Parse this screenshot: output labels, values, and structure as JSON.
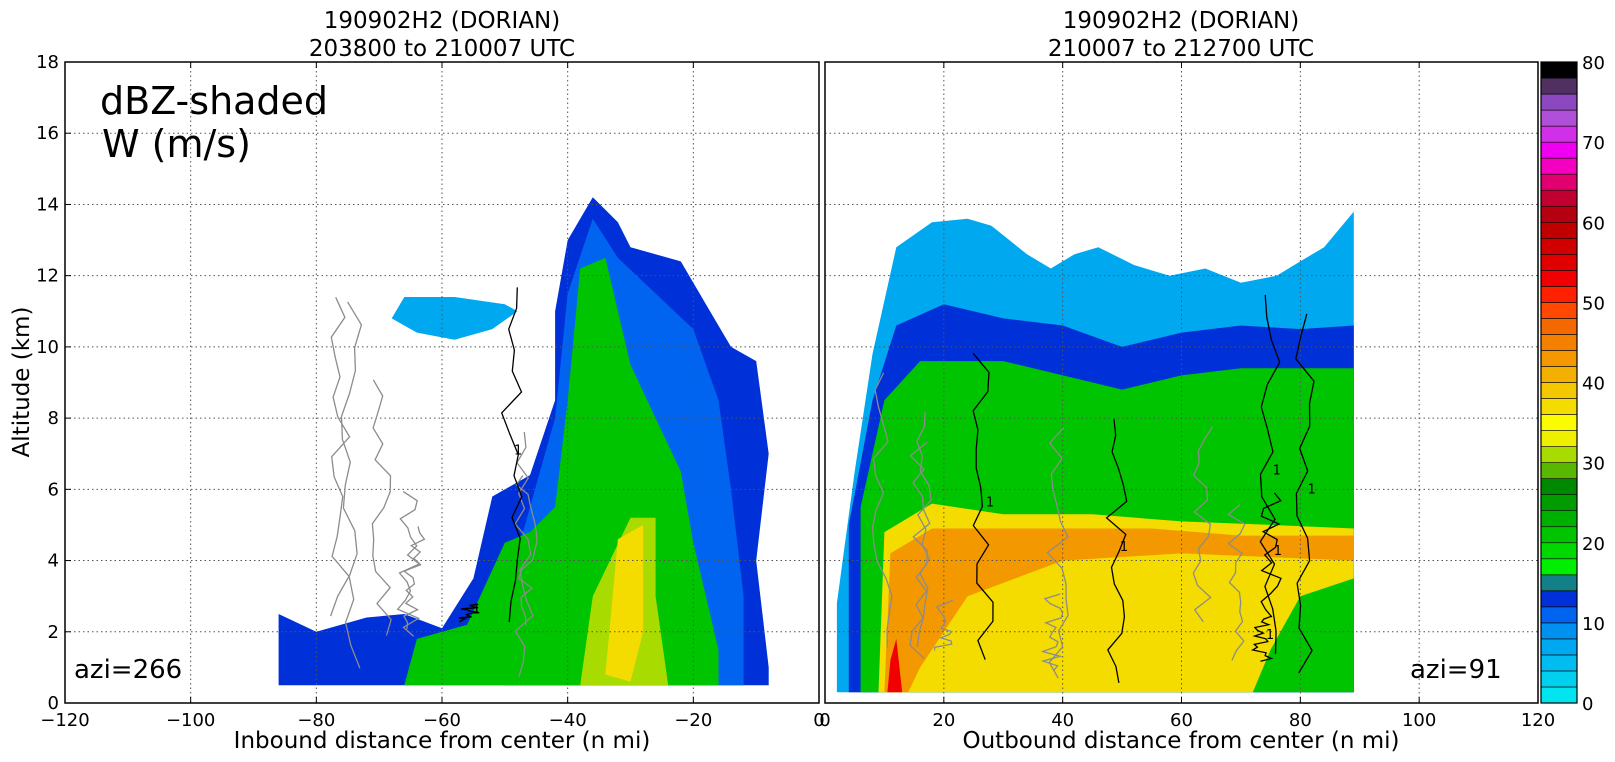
{
  "chart_data": [
    {
      "type": "heatmap",
      "title": [
        "190902H2 (DORIAN)",
        "203800 to 210007 UTC"
      ],
      "xlabel": "Inbound distance from center (n mi)",
      "ylabel": "Altitude (km)",
      "xlim": [
        -120,
        0
      ],
      "ylim": [
        0,
        18
      ],
      "xticks": [
        -120,
        -100,
        -80,
        -60,
        -40,
        -20,
        0
      ],
      "yticks": [
        0,
        2,
        4,
        6,
        8,
        10,
        12,
        14,
        16,
        18
      ],
      "grid": true,
      "annotations": [
        "dBZ-shaded",
        "W (m/s)",
        "azi=266"
      ],
      "contour_label": "1",
      "echo_regions": [
        {
          "dbz": 12,
          "points": [
            [
              -86,
              0.5
            ],
            [
              -86,
              2.5
            ],
            [
              -80,
              2.0
            ],
            [
              -72,
              2.4
            ],
            [
              -66,
              2.5
            ],
            [
              -60,
              2.1
            ],
            [
              -55,
              3.5
            ],
            [
              -52,
              5.8
            ],
            [
              -46,
              6.4
            ],
            [
              -42,
              8.5
            ],
            [
              -42,
              11.0
            ],
            [
              -40,
              13.0
            ],
            [
              -36,
              14.2
            ],
            [
              -32,
              13.5
            ],
            [
              -30,
              12.8
            ],
            [
              -22,
              12.4
            ],
            [
              -18,
              11.2
            ],
            [
              -14,
              10.0
            ],
            [
              -10,
              9.6
            ],
            [
              -8,
              7.0
            ],
            [
              -10,
              4.0
            ],
            [
              -8,
              1.0
            ],
            [
              -8,
              0.5
            ]
          ]
        },
        {
          "dbz": 6,
          "points": [
            [
              -68,
              10.8
            ],
            [
              -64,
              10.4
            ],
            [
              -58,
              10.2
            ],
            [
              -52,
              10.5
            ],
            [
              -48,
              11.0
            ],
            [
              -50,
              11.2
            ],
            [
              -58,
              11.4
            ],
            [
              -66,
              11.4
            ]
          ]
        },
        {
          "dbz": 10,
          "points": [
            [
              -50,
              0.5
            ],
            [
              -50,
              3.0
            ],
            [
              -46,
              5.5
            ],
            [
              -42,
              8.0
            ],
            [
              -40,
              11.5
            ],
            [
              -36,
              13.6
            ],
            [
              -32,
              12.5
            ],
            [
              -26,
              11.5
            ],
            [
              -20,
              10.5
            ],
            [
              -16,
              8.5
            ],
            [
              -14,
              6.0
            ],
            [
              -12,
              3.0
            ],
            [
              -12,
              0.5
            ]
          ]
        },
        {
          "dbz": 20,
          "points": [
            [
              -66,
              0.5
            ],
            [
              -64,
              1.8
            ],
            [
              -56,
              2.2
            ],
            [
              -50,
              4.5
            ],
            [
              -46,
              4.8
            ],
            [
              -42,
              5.5
            ],
            [
              -40,
              8.5
            ],
            [
              -38,
              12.2
            ],
            [
              -34,
              12.5
            ],
            [
              -30,
              9.5
            ],
            [
              -26,
              8.0
            ],
            [
              -22,
              6.5
            ],
            [
              -20,
              4.5
            ],
            [
              -16,
              1.5
            ],
            [
              -16,
              0.5
            ]
          ]
        },
        {
          "dbz": 30,
          "points": [
            [
              -38,
              0.5
            ],
            [
              -36,
              3.0
            ],
            [
              -30,
              5.2
            ],
            [
              -26,
              5.2
            ],
            [
              -26,
              3.0
            ],
            [
              -24,
              0.5
            ]
          ]
        },
        {
          "dbz": 36,
          "points": [
            [
              -34,
              0.8
            ],
            [
              -32,
              4.6
            ],
            [
              -28,
              5.0
            ],
            [
              -28,
              2.0
            ],
            [
              -30,
              0.6
            ]
          ]
        }
      ]
    },
    {
      "type": "heatmap",
      "title": [
        "190902H2 (DORIAN)",
        "210007 to 212700 UTC"
      ],
      "xlabel": "Outbound distance from center (n mi)",
      "ylabel": "",
      "xlim": [
        0,
        120
      ],
      "ylim": [
        0,
        18
      ],
      "xticks": [
        0,
        20,
        40,
        60,
        80,
        100,
        120
      ],
      "grid": true,
      "annotations": [
        "azi=91"
      ],
      "contour_label": "1",
      "echo_regions": [
        {
          "dbz": 6,
          "points": [
            [
              2,
              0.3
            ],
            [
              2,
              2.8
            ],
            [
              5,
              6.5
            ],
            [
              8,
              9.8
            ],
            [
              12,
              12.8
            ],
            [
              18,
              13.5
            ],
            [
              24,
              13.6
            ],
            [
              28,
              13.4
            ],
            [
              34,
              12.6
            ],
            [
              38,
              12.2
            ],
            [
              42,
              12.6
            ],
            [
              46,
              12.8
            ],
            [
              52,
              12.3
            ],
            [
              58,
              12.0
            ],
            [
              64,
              12.2
            ],
            [
              70,
              11.8
            ],
            [
              76,
              12.0
            ],
            [
              80,
              12.4
            ],
            [
              84,
              12.8
            ],
            [
              89,
              13.8
            ],
            [
              89,
              0.3
            ]
          ]
        },
        {
          "dbz": 12,
          "points": [
            [
              4,
              0.3
            ],
            [
              4,
              5.0
            ],
            [
              8,
              8.5
            ],
            [
              12,
              10.6
            ],
            [
              20,
              11.2
            ],
            [
              30,
              10.8
            ],
            [
              40,
              10.6
            ],
            [
              50,
              10.0
            ],
            [
              60,
              10.4
            ],
            [
              70,
              10.6
            ],
            [
              80,
              10.5
            ],
            [
              89,
              10.6
            ],
            [
              89,
              0.3
            ]
          ]
        },
        {
          "dbz": 20,
          "points": [
            [
              6,
              0.3
            ],
            [
              6,
              5.5
            ],
            [
              10,
              8.5
            ],
            [
              16,
              9.6
            ],
            [
              30,
              9.6
            ],
            [
              50,
              8.8
            ],
            [
              60,
              9.2
            ],
            [
              70,
              9.4
            ],
            [
              89,
              9.4
            ],
            [
              89,
              0.3
            ]
          ]
        },
        {
          "dbz": 36,
          "points": [
            [
              9,
              0.3
            ],
            [
              10,
              4.8
            ],
            [
              18,
              5.6
            ],
            [
              30,
              5.3
            ],
            [
              45,
              5.3
            ],
            [
              60,
              5.1
            ],
            [
              75,
              5.0
            ],
            [
              89,
              4.9
            ],
            [
              89,
              3.5
            ],
            [
              80,
              3.0
            ],
            [
              75,
              1.5
            ],
            [
              72,
              0.3
            ]
          ]
        },
        {
          "dbz": 42,
          "points": [
            [
              10,
              0.3
            ],
            [
              11,
              4.2
            ],
            [
              18,
              4.9
            ],
            [
              35,
              4.9
            ],
            [
              55,
              4.9
            ],
            [
              70,
              4.7
            ],
            [
              89,
              4.7
            ],
            [
              89,
              4.0
            ],
            [
              60,
              4.2
            ],
            [
              40,
              4.0
            ],
            [
              24,
              3.0
            ],
            [
              16,
              1.0
            ],
            [
              14,
              0.3
            ]
          ]
        },
        {
          "dbz": 52,
          "points": [
            [
              10.5,
              0.3
            ],
            [
              11,
              1.2
            ],
            [
              12,
              1.8
            ],
            [
              13,
              0.3
            ]
          ]
        }
      ]
    }
  ],
  "colorbar": {
    "min": 0,
    "max": 80,
    "ticks": [
      0,
      10,
      20,
      30,
      40,
      50,
      60,
      70,
      80
    ],
    "bins": [
      {
        "lo": 0,
        "hi": 2,
        "color": "#00e5ee"
      },
      {
        "lo": 2,
        "hi": 4,
        "color": "#00d0ee"
      },
      {
        "lo": 4,
        "hi": 6,
        "color": "#00bcf0"
      },
      {
        "lo": 6,
        "hi": 8,
        "color": "#00a8f0"
      },
      {
        "lo": 8,
        "hi": 10,
        "color": "#0090f0"
      },
      {
        "lo": 10,
        "hi": 12,
        "color": "#0064f0"
      },
      {
        "lo": 12,
        "hi": 14,
        "color": "#0030d8"
      },
      {
        "lo": 14,
        "hi": 16,
        "color": "#138088"
      },
      {
        "lo": 16,
        "hi": 18,
        "color": "#00ee00"
      },
      {
        "lo": 18,
        "hi": 20,
        "color": "#00d800"
      },
      {
        "lo": 20,
        "hi": 22,
        "color": "#00c400"
      },
      {
        "lo": 22,
        "hi": 24,
        "color": "#00b000"
      },
      {
        "lo": 24,
        "hi": 26,
        "color": "#009c00"
      },
      {
        "lo": 26,
        "hi": 28,
        "color": "#008800"
      },
      {
        "lo": 28,
        "hi": 30,
        "color": "#58b800"
      },
      {
        "lo": 30,
        "hi": 32,
        "color": "#a8dc00"
      },
      {
        "lo": 32,
        "hi": 34,
        "color": "#eef000"
      },
      {
        "lo": 34,
        "hi": 36,
        "color": "#fcfc00"
      },
      {
        "lo": 36,
        "hi": 38,
        "color": "#f4dc00"
      },
      {
        "lo": 38,
        "hi": 40,
        "color": "#f4c800"
      },
      {
        "lo": 40,
        "hi": 42,
        "color": "#f4b000"
      },
      {
        "lo": 42,
        "hi": 44,
        "color": "#f49800"
      },
      {
        "lo": 44,
        "hi": 46,
        "color": "#f48000"
      },
      {
        "lo": 46,
        "hi": 48,
        "color": "#f46800"
      },
      {
        "lo": 48,
        "hi": 50,
        "color": "#ff4800"
      },
      {
        "lo": 50,
        "hi": 52,
        "color": "#ff2000"
      },
      {
        "lo": 52,
        "hi": 54,
        "color": "#f00000"
      },
      {
        "lo": 54,
        "hi": 56,
        "color": "#e00000"
      },
      {
        "lo": 56,
        "hi": 58,
        "color": "#d00000"
      },
      {
        "lo": 58,
        "hi": 60,
        "color": "#c00000"
      },
      {
        "lo": 60,
        "hi": 62,
        "color": "#b40010"
      },
      {
        "lo": 62,
        "hi": 64,
        "color": "#c00030"
      },
      {
        "lo": 64,
        "hi": 66,
        "color": "#e00070"
      },
      {
        "lo": 66,
        "hi": 68,
        "color": "#f400c0"
      },
      {
        "lo": 68,
        "hi": 70,
        "color": "#f000f0"
      },
      {
        "lo": 70,
        "hi": 72,
        "color": "#d030e8"
      },
      {
        "lo": 72,
        "hi": 74,
        "color": "#b050d8"
      },
      {
        "lo": 74,
        "hi": 76,
        "color": "#8c48c0"
      },
      {
        "lo": 76,
        "hi": 78,
        "color": "#503060"
      },
      {
        "lo": 78,
        "hi": 80,
        "color": "#000000"
      }
    ]
  }
}
